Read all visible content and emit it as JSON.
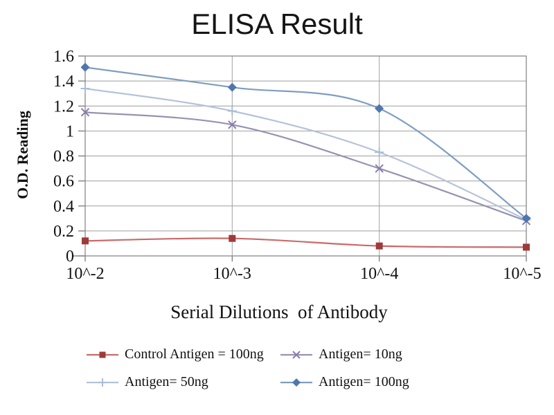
{
  "page": {
    "background": "#ffffff"
  },
  "chart_data": {
    "type": "line",
    "title": "ELISA Result",
    "xlabel": "Serial Dilutions  of Antibody",
    "ylabel": "O.D. Reading",
    "categories": [
      "10^-2",
      "10^-3",
      "10^-4",
      "10^-5"
    ],
    "y_ticks": [
      0,
      0.2,
      0.4,
      0.6,
      0.8,
      1,
      1.2,
      1.4,
      1.6
    ],
    "y_tick_labels": [
      "0",
      "0.2",
      "0.4",
      "0.6",
      "0.8",
      "1",
      "1.2",
      "1.4",
      "1.6"
    ],
    "ylim": [
      0,
      1.6
    ],
    "grid": true,
    "smoothed_lines": true,
    "legend_position": "bottom",
    "series": [
      {
        "name": "Control Antigen = 100ng",
        "marker": "square",
        "line_color": "#c96a6a",
        "marker_color": "#9e3a3a",
        "values": [
          0.12,
          0.14,
          0.08,
          0.07
        ]
      },
      {
        "name": "Antigen= 10ng",
        "marker": "x",
        "line_color": "#9593af",
        "marker_color": "#8b7aae",
        "values": [
          1.15,
          1.05,
          0.7,
          0.28
        ]
      },
      {
        "name": "Antigen= 50ng",
        "marker": "plus",
        "line_color": "#b4c3d8",
        "marker_color": "#aabdd6",
        "values": [
          1.34,
          1.16,
          0.83,
          0.29
        ]
      },
      {
        "name": "Antigen= 100ng",
        "marker": "diamond",
        "line_color": "#7e9dc1",
        "marker_color": "#4f77ad",
        "values": [
          1.51,
          1.35,
          1.18,
          0.3
        ]
      }
    ],
    "colors": {
      "grid": "#9e9e9e",
      "axis": "#6e6e6e",
      "border": "#888888",
      "text": "#111111"
    }
  }
}
